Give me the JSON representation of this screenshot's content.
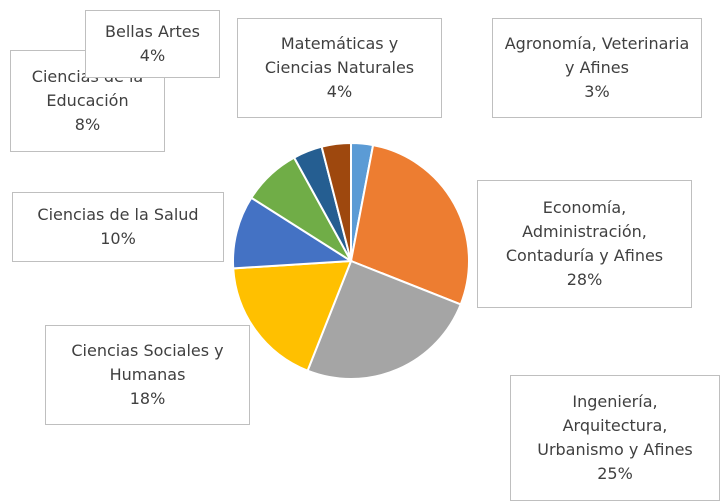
{
  "chart_data": {
    "type": "pie",
    "categories": [
      "Agronomía, Veterinaria y Afines",
      "Economía, Administración, Contaduría y Afines",
      "Ingeniería, Arquitectura, Urbanismo y Afines",
      "Ciencias Sociales y Humanas",
      "Ciencias de la Salud",
      "Ciencias de la Educación",
      "Bellas Artes",
      "Matemáticas y Ciencias Naturales"
    ],
    "values": [
      3,
      28,
      25,
      18,
      10,
      8,
      4,
      4
    ],
    "value_labels": [
      "3%",
      "28%",
      "25%",
      "18%",
      "10%",
      "8%",
      "4%",
      "4%"
    ],
    "colors": [
      "#5B9BD5",
      "#ED7D31",
      "#A5A5A5",
      "#FFC000",
      "#4472C4",
      "#70AD47",
      "#255E91",
      "#9E480E"
    ]
  }
}
